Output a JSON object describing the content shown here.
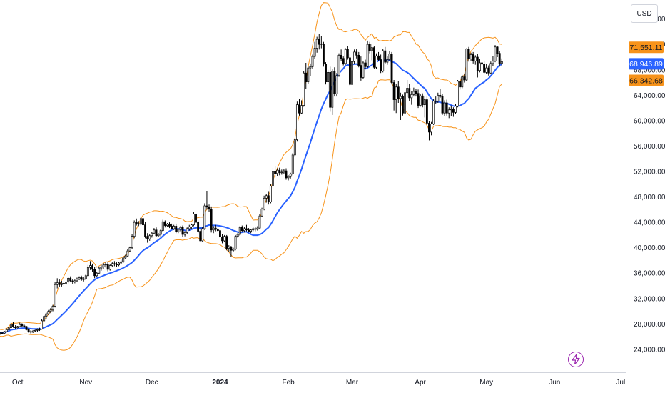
{
  "chart_data": {
    "type": "candlestick",
    "currency": "USD",
    "x_ticks": [
      {
        "label": "Oct",
        "date": "2023-10-01",
        "bold": false
      },
      {
        "label": "Nov",
        "date": "2023-11-01",
        "bold": false
      },
      {
        "label": "Dec",
        "date": "2023-12-01",
        "bold": false
      },
      {
        "label": "2024",
        "date": "2024-01-01",
        "bold": true
      },
      {
        "label": "Feb",
        "date": "2024-02-01",
        "bold": false
      },
      {
        "label": "Mar",
        "date": "2024-03-01",
        "bold": false
      },
      {
        "label": "Apr",
        "date": "2024-04-01",
        "bold": false
      },
      {
        "label": "May",
        "date": "2024-05-01",
        "bold": false
      },
      {
        "label": "Jun",
        "date": "2024-06-01",
        "bold": false
      },
      {
        "label": "Jul",
        "date": "2024-07-01",
        "bold": false
      }
    ],
    "y_ticks": [
      "76,000.00",
      "72,000.00",
      "68,000.00",
      "64,000.00",
      "60,000.00",
      "56,000.00",
      "52,000.00",
      "48,000.00",
      "44,000.00",
      "40,000.00",
      "36,000.00",
      "32,000.00",
      "28,000.00",
      "24,000.00"
    ],
    "y_tick_values": [
      76000,
      72000,
      68000,
      64000,
      60000,
      56000,
      52000,
      48000,
      44000,
      40000,
      36000,
      32000,
      28000,
      24000
    ],
    "ylim": [
      20500,
      79000
    ],
    "xlim": [
      "2023-09-23",
      "2024-07-03"
    ],
    "price_labels": [
      {
        "text": "71,551.11",
        "value": 71551.11,
        "role": "upper band",
        "color": "#f7931a"
      },
      {
        "text": "68,946.89",
        "value": 68946.89,
        "role": "moving average",
        "color": "#2962ff"
      },
      {
        "text": "66,342.68",
        "value": 66342.68,
        "role": "lower band",
        "color": "#f7931a"
      }
    ],
    "colors": {
      "candle": "#000000",
      "ma": "#2962ff",
      "bands": "#f7931a",
      "grid": "#f0f3fa"
    },
    "grid": false,
    "bands_period_days": 20,
    "ohlc_start_date": "2023-09-23",
    "ohlc": [
      [
        26500,
        26700,
        26300,
        26600
      ],
      [
        26600,
        26800,
        26400,
        26550
      ],
      [
        26550,
        26900,
        26450,
        26800
      ],
      [
        26800,
        27300,
        26700,
        27100
      ],
      [
        27100,
        27600,
        26900,
        27400
      ],
      [
        27400,
        28200,
        27200,
        28000
      ],
      [
        28000,
        28300,
        27400,
        27550
      ],
      [
        27550,
        27800,
        27200,
        27400
      ],
      [
        27400,
        27700,
        27300,
        27600
      ],
      [
        27600,
        28200,
        27500,
        27900
      ],
      [
        27900,
        28100,
        27500,
        27700
      ],
      [
        27700,
        27900,
        27400,
        27600
      ],
      [
        27600,
        27700,
        27000,
        27100
      ],
      [
        27100,
        27300,
        26600,
        26800
      ],
      [
        26800,
        27000,
        26500,
        26700
      ],
      [
        26700,
        27000,
        26600,
        26900
      ],
      [
        26900,
        27100,
        26700,
        27000
      ],
      [
        27000,
        27300,
        26800,
        27100
      ],
      [
        27100,
        27400,
        26900,
        27200
      ],
      [
        27200,
        28800,
        27100,
        28500
      ],
      [
        28500,
        29400,
        28300,
        29200
      ],
      [
        29200,
        29800,
        28800,
        29600
      ],
      [
        29600,
        30200,
        29400,
        30000
      ],
      [
        30000,
        30500,
        29700,
        30200
      ],
      [
        30200,
        31000,
        30000,
        30800
      ],
      [
        30800,
        34600,
        30600,
        34200
      ],
      [
        34200,
        35200,
        33600,
        34500
      ],
      [
        34500,
        35000,
        33800,
        34200
      ],
      [
        34200,
        34800,
        33900,
        34400
      ],
      [
        34400,
        34700,
        34000,
        34300
      ],
      [
        34300,
        34900,
        34100,
        34600
      ],
      [
        34600,
        35400,
        34400,
        35200
      ],
      [
        35200,
        35500,
        34600,
        34800
      ],
      [
        34800,
        35100,
        34300,
        34600
      ],
      [
        34600,
        35000,
        34400,
        34800
      ],
      [
        34800,
        35300,
        34600,
        35100
      ],
      [
        35100,
        35500,
        34900,
        35300
      ],
      [
        35300,
        35600,
        34800,
        35000
      ],
      [
        35000,
        35400,
        34700,
        35100
      ],
      [
        35100,
        35900,
        34900,
        35600
      ],
      [
        35600,
        37300,
        35400,
        36900
      ],
      [
        36900,
        37900,
        36500,
        37200
      ],
      [
        37200,
        37500,
        36200,
        36600
      ],
      [
        36600,
        37000,
        35200,
        35600
      ],
      [
        35600,
        36200,
        35400,
        36000
      ],
      [
        36000,
        37000,
        35800,
        36800
      ],
      [
        36800,
        37300,
        36400,
        37000
      ],
      [
        37000,
        37600,
        36700,
        37300
      ],
      [
        37300,
        37700,
        36900,
        37400
      ],
      [
        37400,
        37800,
        36300,
        36600
      ],
      [
        36600,
        37400,
        36400,
        37200
      ],
      [
        37200,
        37700,
        37000,
        37500
      ],
      [
        37500,
        37900,
        37100,
        37400
      ],
      [
        37400,
        37700,
        37000,
        37300
      ],
      [
        37300,
        37800,
        37100,
        37600
      ],
      [
        37600,
        38100,
        37400,
        37800
      ],
      [
        37800,
        38600,
        37600,
        38400
      ],
      [
        38400,
        38900,
        38200,
        38700
      ],
      [
        38700,
        39800,
        38600,
        39500
      ],
      [
        39500,
        40200,
        39300,
        40000
      ],
      [
        40000,
        42200,
        39800,
        41800
      ],
      [
        41800,
        44300,
        41500,
        44000
      ],
      [
        44000,
        44600,
        43500,
        43800
      ],
      [
        43800,
        44200,
        43400,
        43700
      ],
      [
        43700,
        44900,
        43500,
        44600
      ],
      [
        44600,
        44900,
        43300,
        43600
      ],
      [
        43600,
        44100,
        41500,
        41800
      ],
      [
        41800,
        42300,
        40800,
        41400
      ],
      [
        41400,
        42100,
        41100,
        41900
      ],
      [
        41900,
        42500,
        41600,
        42300
      ],
      [
        42300,
        43100,
        42100,
        42800
      ],
      [
        42800,
        43200,
        41700,
        41900
      ],
      [
        41900,
        42300,
        41700,
        42100
      ],
      [
        42100,
        42900,
        41800,
        42700
      ],
      [
        42700,
        44400,
        42500,
        44100
      ],
      [
        44100,
        44300,
        43200,
        43500
      ],
      [
        43500,
        43900,
        43300,
        43700
      ],
      [
        43700,
        44000,
        43100,
        43400
      ],
      [
        43400,
        43800,
        42900,
        43000
      ],
      [
        43000,
        43600,
        42800,
        43400
      ],
      [
        43400,
        43800,
        42300,
        42500
      ],
      [
        42500,
        43100,
        42300,
        42900
      ],
      [
        42900,
        43400,
        42600,
        43200
      ],
      [
        43200,
        43500,
        41700,
        42100
      ],
      [
        42100,
        42600,
        41800,
        42400
      ],
      [
        42400,
        43200,
        42200,
        43000
      ],
      [
        43000,
        43600,
        42700,
        43300
      ],
      [
        43300,
        43800,
        43000,
        43600
      ],
      [
        43600,
        45700,
        43400,
        45300
      ],
      [
        45300,
        45500,
        43600,
        44000
      ],
      [
        44000,
        44300,
        42300,
        42600
      ],
      [
        42600,
        43200,
        40900,
        41100
      ],
      [
        41100,
        43300,
        40900,
        43000
      ],
      [
        43000,
        47000,
        42800,
        46600
      ],
      [
        46600,
        48900,
        46000,
        46400
      ],
      [
        46400,
        46800,
        45600,
        46100
      ],
      [
        46100,
        46500,
        42400,
        42800
      ],
      [
        42800,
        43400,
        42300,
        43100
      ],
      [
        43100,
        43600,
        42600,
        42900
      ],
      [
        42900,
        43100,
        42500,
        42700
      ],
      [
        42700,
        42900,
        41500,
        41700
      ],
      [
        41700,
        42100,
        40700,
        41100
      ],
      [
        41100,
        42000,
        40900,
        41800
      ],
      [
        41800,
        42000,
        39600,
        39900
      ],
      [
        39900,
        40400,
        39400,
        40100
      ],
      [
        40100,
        40300,
        38600,
        39600
      ],
      [
        39600,
        40000,
        39400,
        39800
      ],
      [
        39800,
        42000,
        39600,
        41800
      ],
      [
        41800,
        42300,
        41600,
        42100
      ],
      [
        42100,
        43400,
        41900,
        43200
      ],
      [
        43200,
        43500,
        42500,
        42700
      ],
      [
        42700,
        43300,
        42400,
        43000
      ],
      [
        43000,
        43600,
        42600,
        42800
      ],
      [
        42800,
        43100,
        42400,
        42600
      ],
      [
        42600,
        43000,
        42300,
        42800
      ],
      [
        42800,
        43200,
        42600,
        43000
      ],
      [
        43000,
        43300,
        42600,
        42900
      ],
      [
        42900,
        43400,
        42700,
        43100
      ],
      [
        43100,
        45300,
        42900,
        45000
      ],
      [
        45000,
        46300,
        44800,
        46100
      ],
      [
        46100,
        48200,
        45900,
        47800
      ],
      [
        47800,
        48500,
        47100,
        48200
      ],
      [
        48200,
        48800,
        46800,
        47200
      ],
      [
        47200,
        50000,
        47000,
        49700
      ],
      [
        49700,
        52600,
        49400,
        52000
      ],
      [
        52000,
        52800,
        51100,
        51700
      ],
      [
        51700,
        52500,
        51300,
        52200
      ],
      [
        52200,
        52600,
        51400,
        51800
      ],
      [
        51800,
        52300,
        51500,
        51900
      ],
      [
        51900,
        52400,
        51600,
        52100
      ],
      [
        52100,
        52500,
        50700,
        51000
      ],
      [
        51000,
        51400,
        50600,
        51200
      ],
      [
        51200,
        51800,
        50900,
        51600
      ],
      [
        51600,
        54900,
        51400,
        54600
      ],
      [
        54600,
        57200,
        54300,
        57000
      ],
      [
        57000,
        63000,
        56700,
        62500
      ],
      [
        62500,
        63400,
        60800,
        61200
      ],
      [
        61200,
        63200,
        61000,
        62400
      ],
      [
        62400,
        67800,
        62200,
        67500
      ],
      [
        67500,
        69100,
        65000,
        66100
      ],
      [
        66100,
        68600,
        65800,
        68300
      ],
      [
        68300,
        69000,
        67000,
        68500
      ],
      [
        68500,
        70400,
        68200,
        70100
      ],
      [
        70100,
        72400,
        69700,
        71400
      ],
      [
        71400,
        73200,
        70700,
        72800
      ],
      [
        72800,
        73600,
        71200,
        72000
      ],
      [
        72000,
        73300,
        71400,
        72100
      ],
      [
        72100,
        72400,
        68500,
        68900
      ],
      [
        68900,
        69200,
        65700,
        66100
      ],
      [
        66100,
        68000,
        64500,
        67600
      ],
      [
        67600,
        68500,
        61400,
        62100
      ],
      [
        62100,
        68200,
        60900,
        67800
      ],
      [
        67800,
        68400,
        63800,
        64200
      ],
      [
        64200,
        67500,
        63800,
        67100
      ],
      [
        67100,
        70600,
        66900,
        70300
      ],
      [
        70300,
        71200,
        69400,
        69800
      ],
      [
        69800,
        70100,
        68700,
        69000
      ],
      [
        69000,
        71400,
        68800,
        71200
      ],
      [
        71200,
        71800,
        69600,
        69900
      ],
      [
        69900,
        70500,
        65400,
        65700
      ],
      [
        65700,
        69500,
        65600,
        69300
      ],
      [
        69300,
        71200,
        68900,
        70800
      ],
      [
        70800,
        71300,
        69800,
        70300
      ],
      [
        70300,
        70800,
        68400,
        68700
      ],
      [
        68700,
        70100,
        66300,
        66800
      ],
      [
        66800,
        69400,
        66600,
        69100
      ],
      [
        69100,
        69600,
        68200,
        68500
      ],
      [
        68500,
        72600,
        68300,
        72000
      ],
      [
        72000,
        72400,
        70600,
        71000
      ],
      [
        71000,
        72100,
        69500,
        71500
      ],
      [
        71500,
        71800,
        68100,
        68400
      ],
      [
        68400,
        70600,
        68200,
        70200
      ],
      [
        70200,
        70800,
        69400,
        69600
      ],
      [
        69600,
        70400,
        67500,
        67800
      ],
      [
        67800,
        71300,
        67600,
        71000
      ],
      [
        71000,
        71600,
        68900,
        69200
      ],
      [
        69200,
        70100,
        68800,
        69600
      ],
      [
        69600,
        71000,
        69400,
        70500
      ],
      [
        70500,
        70800,
        65700,
        66000
      ],
      [
        66000,
        66400,
        61600,
        63300
      ],
      [
        63300,
        65800,
        61200,
        65300
      ],
      [
        65300,
        66200,
        62800,
        63500
      ],
      [
        63500,
        64400,
        60100,
        63800
      ],
      [
        63800,
        64100,
        60800,
        61200
      ],
      [
        61200,
        64800,
        61000,
        64400
      ],
      [
        64400,
        66400,
        63700,
        65100
      ],
      [
        65100,
        65800,
        63100,
        63600
      ],
      [
        63600,
        64700,
        62500,
        64100
      ],
      [
        64100,
        65200,
        63800,
        64600
      ],
      [
        64600,
        65000,
        63800,
        64300
      ],
      [
        64300,
        64900,
        62000,
        62400
      ],
      [
        62400,
        64200,
        62200,
        63900
      ],
      [
        63900,
        64300,
        62100,
        62500
      ],
      [
        62500,
        63800,
        60500,
        63300
      ],
      [
        63300,
        63800,
        59200,
        59600
      ],
      [
        59600,
        59900,
        56900,
        58200
      ],
      [
        58200,
        59800,
        57700,
        59500
      ],
      [
        59500,
        63400,
        59300,
        63100
      ],
      [
        63100,
        63800,
        62600,
        63100
      ],
      [
        63100,
        64400,
        62800,
        64000
      ],
      [
        64000,
        65000,
        63600,
        63800
      ],
      [
        63800,
        64200,
        60900,
        61200
      ],
      [
        61200,
        63200,
        60700,
        62800
      ],
      [
        62800,
        63300,
        60800,
        61200
      ],
      [
        61200,
        62100,
        60400,
        61700
      ],
      [
        61700,
        62400,
        60700,
        61800
      ],
      [
        61800,
        62100,
        60600,
        61300
      ],
      [
        61300,
        62600,
        61000,
        62300
      ],
      [
        62300,
        66400,
        62100,
        66200
      ],
      [
        66200,
        66800,
        64900,
        65300
      ],
      [
        65300,
        67200,
        65100,
        66900
      ],
      [
        66900,
        67300,
        66000,
        66400
      ],
      [
        66400,
        71400,
        66200,
        71300
      ],
      [
        71300,
        71600,
        69300,
        69700
      ],
      [
        69700,
        70700,
        69400,
        70400
      ],
      [
        70400,
        70800,
        69000,
        69400
      ],
      [
        69400,
        70300,
        68800,
        70000
      ],
      [
        70000,
        70500,
        66800,
        67900
      ],
      [
        67900,
        69700,
        67600,
        69100
      ],
      [
        69100,
        70200,
        68700,
        68900
      ],
      [
        68900,
        69400,
        67300,
        67600
      ],
      [
        67600,
        68900,
        67400,
        68300
      ],
      [
        68300,
        68700,
        67100,
        67500
      ],
      [
        67500,
        69300,
        67300,
        69000
      ],
      [
        69000,
        70200,
        68600,
        69400
      ],
      [
        69400,
        71900,
        69200,
        71600
      ],
      [
        71600,
        71800,
        70000,
        70600
      ],
      [
        70600,
        71000,
        68500,
        69000
      ],
      [
        69000,
        69800,
        68600,
        69300
      ]
    ]
  }
}
